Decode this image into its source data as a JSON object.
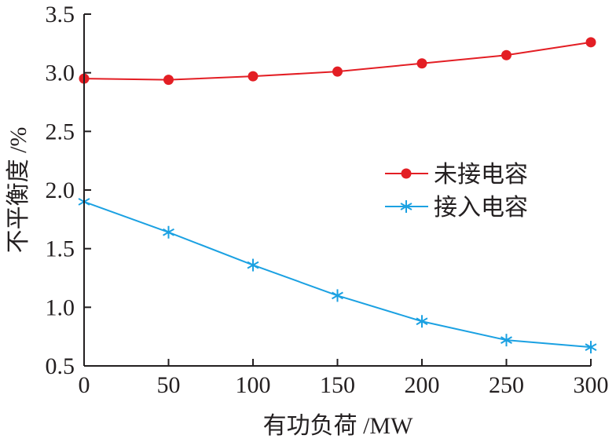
{
  "chart_data": {
    "type": "line",
    "title": "",
    "xlabel": "有功负荷 /MW",
    "ylabel": "不平衡度 /%",
    "xlim": [
      0,
      300
    ],
    "ylim": [
      0.5,
      3.5
    ],
    "xticks": [
      "0",
      "50",
      "100",
      "150",
      "200",
      "250",
      "300"
    ],
    "yticks": [
      "0.5",
      "1.0",
      "1.5",
      "2.0",
      "2.5",
      "3.0",
      "3.5"
    ],
    "grid": false,
    "legend_position": "center-right",
    "x": [
      0,
      50,
      100,
      150,
      200,
      250,
      300
    ],
    "series": [
      {
        "name": "未接电容",
        "values": [
          2.95,
          2.94,
          2.97,
          3.01,
          3.08,
          3.15,
          3.26
        ],
        "color": "#e31e24",
        "marker": "circle"
      },
      {
        "name": "接入电容",
        "values": [
          1.9,
          1.64,
          1.36,
          1.1,
          0.88,
          0.72,
          0.66
        ],
        "color": "#1ba1e2",
        "marker": "asterisk"
      }
    ]
  }
}
